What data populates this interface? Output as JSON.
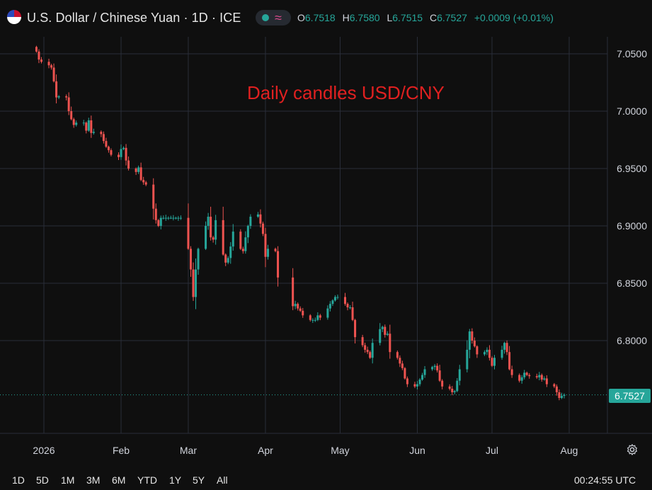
{
  "header": {
    "title": "U.S. Dollar / Chinese Yuan · 1D · ICE",
    "ohlc": [
      {
        "label": "O",
        "value": "6.7518"
      },
      {
        "label": "H",
        "value": "6.7580"
      },
      {
        "label": "L",
        "value": "6.7515"
      },
      {
        "label": "C",
        "value": "6.7527"
      }
    ],
    "change": "+0.0009 (+0.01%)",
    "status_color": "#26a69a"
  },
  "annotation": "Daily candles USD/CNY",
  "current_price": "6.7527",
  "range_buttons": [
    "1D",
    "5D",
    "1M",
    "3M",
    "6M",
    "YTD",
    "1Y",
    "5Y",
    "All"
  ],
  "clock": "00:24:55 UTC",
  "icons": {
    "settings": "gear-icon",
    "flag": "us-cn-flag-icon",
    "market_status": "market-open-dot-icon"
  },
  "chart_data": {
    "type": "candlestick",
    "title": "",
    "up_color": "#26a69a",
    "down_color": "#ef5350",
    "ylim": [
      6.725,
      7.0625
    ],
    "y_ticks": [
      "7.0500",
      "7.0000",
      "6.9500",
      "6.9000",
      "6.8500",
      "6.8000"
    ],
    "x_ticks": [
      "2026",
      "Feb",
      "Mar",
      "Apr",
      "May",
      "Jun",
      "Jul",
      "Aug"
    ],
    "x_tick_days": [
      4,
      35,
      62,
      93,
      123,
      154,
      184,
      215
    ],
    "grid": true,
    "last_close": 6.7527,
    "closes": [
      {
        "d": 1,
        "c": 7.052
      },
      {
        "d": 2,
        "c": 7.045
      },
      {
        "d": 3,
        "c": 7.043
      },
      {
        "d": 6,
        "c": 7.04
      },
      {
        "d": 7,
        "c": 7.038
      },
      {
        "d": 8,
        "c": 7.026
      },
      {
        "d": 9,
        "c": 7.012
      },
      {
        "d": 10,
        "c": 7.013
      },
      {
        "d": 13,
        "c": 7.012
      },
      {
        "d": 14,
        "c": 7.0
      },
      {
        "d": 15,
        "c": 6.993
      },
      {
        "d": 16,
        "c": 6.988
      },
      {
        "d": 17,
        "c": 6.99
      },
      {
        "d": 20,
        "c": 6.99
      },
      {
        "d": 21,
        "c": 6.983
      },
      {
        "d": 22,
        "c": 6.992
      },
      {
        "d": 23,
        "c": 6.981
      },
      {
        "d": 24,
        "c": 6.982
      },
      {
        "d": 27,
        "c": 6.98
      },
      {
        "d": 28,
        "c": 6.974
      },
      {
        "d": 29,
        "c": 6.969
      },
      {
        "d": 30,
        "c": 6.966
      },
      {
        "d": 31,
        "c": 6.962
      },
      {
        "d": 34,
        "c": 6.96
      },
      {
        "d": 35,
        "c": 6.967
      },
      {
        "d": 36,
        "c": 6.968
      },
      {
        "d": 37,
        "c": 6.957
      },
      {
        "d": 38,
        "c": 6.95
      },
      {
        "d": 41,
        "c": 6.947
      },
      {
        "d": 42,
        "c": 6.951
      },
      {
        "d": 43,
        "c": 6.94
      },
      {
        "d": 44,
        "c": 6.938
      },
      {
        "d": 45,
        "c": 6.936
      },
      {
        "d": 48,
        "c": 6.915
      },
      {
        "d": 49,
        "c": 6.905
      },
      {
        "d": 50,
        "c": 6.9
      },
      {
        "d": 51,
        "c": 6.907
      },
      {
        "d": 52,
        "c": 6.907
      },
      {
        "d": 53,
        "c": 6.907
      },
      {
        "d": 54,
        "c": 6.907
      },
      {
        "d": 55,
        "c": 6.907
      },
      {
        "d": 56,
        "c": 6.907
      },
      {
        "d": 57,
        "c": 6.907
      },
      {
        "d": 58,
        "c": 6.907
      },
      {
        "d": 59,
        "c": 6.907
      },
      {
        "d": 62,
        "c": 6.88
      },
      {
        "d": 63,
        "c": 6.862
      },
      {
        "d": 64,
        "c": 6.838
      },
      {
        "d": 65,
        "c": 6.862
      },
      {
        "d": 66,
        "c": 6.88
      },
      {
        "d": 69,
        "c": 6.9
      },
      {
        "d": 70,
        "c": 6.908
      },
      {
        "d": 71,
        "c": 6.89
      },
      {
        "d": 72,
        "c": 6.888
      },
      {
        "d": 73,
        "c": 6.905
      },
      {
        "d": 76,
        "c": 6.875
      },
      {
        "d": 77,
        "c": 6.868
      },
      {
        "d": 78,
        "c": 6.872
      },
      {
        "d": 79,
        "c": 6.882
      },
      {
        "d": 80,
        "c": 6.895
      },
      {
        "d": 83,
        "c": 6.88
      },
      {
        "d": 84,
        "c": 6.878
      },
      {
        "d": 85,
        "c": 6.89
      },
      {
        "d": 86,
        "c": 6.9
      },
      {
        "d": 87,
        "c": 6.908
      },
      {
        "d": 90,
        "c": 6.91
      },
      {
        "d": 91,
        "c": 6.902
      },
      {
        "d": 92,
        "c": 6.893
      },
      {
        "d": 93,
        "c": 6.873
      },
      {
        "d": 94,
        "c": 6.88
      },
      {
        "d": 97,
        "c": 6.878
      },
      {
        "d": 98,
        "c": 6.855
      },
      {
        "d": 104,
        "c": 6.83
      },
      {
        "d": 105,
        "c": 6.832
      },
      {
        "d": 106,
        "c": 6.828
      },
      {
        "d": 107,
        "c": 6.826
      },
      {
        "d": 108,
        "c": 6.822
      },
      {
        "d": 111,
        "c": 6.818
      },
      {
        "d": 112,
        "c": 6.818
      },
      {
        "d": 113,
        "c": 6.818
      },
      {
        "d": 114,
        "c": 6.822
      },
      {
        "d": 115,
        "c": 6.82
      },
      {
        "d": 118,
        "c": 6.828
      },
      {
        "d": 119,
        "c": 6.832
      },
      {
        "d": 120,
        "c": 6.835
      },
      {
        "d": 121,
        "c": 6.838
      },
      {
        "d": 122,
        "c": 6.838
      },
      {
        "d": 125,
        "c": 6.832
      },
      {
        "d": 126,
        "c": 6.829
      },
      {
        "d": 127,
        "c": 6.829
      },
      {
        "d": 128,
        "c": 6.818
      },
      {
        "d": 129,
        "c": 6.803
      },
      {
        "d": 132,
        "c": 6.796
      },
      {
        "d": 133,
        "c": 6.792
      },
      {
        "d": 134,
        "c": 6.79
      },
      {
        "d": 135,
        "c": 6.785
      },
      {
        "d": 136,
        "c": 6.798
      },
      {
        "d": 139,
        "c": 6.81
      },
      {
        "d": 140,
        "c": 6.812
      },
      {
        "d": 141,
        "c": 6.805
      },
      {
        "d": 142,
        "c": 6.806
      },
      {
        "d": 143,
        "c": 6.79
      },
      {
        "d": 146,
        "c": 6.785
      },
      {
        "d": 147,
        "c": 6.78
      },
      {
        "d": 148,
        "c": 6.776
      },
      {
        "d": 149,
        "c": 6.767
      },
      {
        "d": 150,
        "c": 6.762
      },
      {
        "d": 153,
        "c": 6.76
      },
      {
        "d": 154,
        "c": 6.762
      },
      {
        "d": 155,
        "c": 6.766
      },
      {
        "d": 156,
        "c": 6.77
      },
      {
        "d": 157,
        "c": 6.775
      },
      {
        "d": 160,
        "c": 6.777
      },
      {
        "d": 161,
        "c": 6.778
      },
      {
        "d": 162,
        "c": 6.774
      },
      {
        "d": 163,
        "c": 6.765
      },
      {
        "d": 164,
        "c": 6.76
      },
      {
        "d": 167,
        "c": 6.758
      },
      {
        "d": 168,
        "c": 6.755
      },
      {
        "d": 169,
        "c": 6.756
      },
      {
        "d": 170,
        "c": 6.765
      },
      {
        "d": 171,
        "c": 6.775
      },
      {
        "d": 174,
        "c": 6.792
      },
      {
        "d": 175,
        "c": 6.808
      },
      {
        "d": 176,
        "c": 6.8
      },
      {
        "d": 177,
        "c": 6.795
      },
      {
        "d": 178,
        "c": 6.788
      },
      {
        "d": 181,
        "c": 6.79
      },
      {
        "d": 182,
        "c": 6.792
      },
      {
        "d": 183,
        "c": 6.785
      },
      {
        "d": 184,
        "c": 6.778
      },
      {
        "d": 185,
        "c": 6.785
      },
      {
        "d": 188,
        "c": 6.792
      },
      {
        "d": 189,
        "c": 6.798
      },
      {
        "d": 190,
        "c": 6.79
      },
      {
        "d": 191,
        "c": 6.775
      },
      {
        "d": 192,
        "c": 6.77
      },
      {
        "d": 195,
        "c": 6.765
      },
      {
        "d": 196,
        "c": 6.768
      },
      {
        "d": 197,
        "c": 6.772
      },
      {
        "d": 198,
        "c": 6.77
      },
      {
        "d": 199,
        "c": 6.769
      },
      {
        "d": 202,
        "c": 6.768
      },
      {
        "d": 203,
        "c": 6.77
      },
      {
        "d": 204,
        "c": 6.766
      },
      {
        "d": 205,
        "c": 6.767
      },
      {
        "d": 206,
        "c": 6.762
      },
      {
        "d": 209,
        "c": 6.76
      },
      {
        "d": 210,
        "c": 6.755
      },
      {
        "d": 211,
        "c": 6.75
      },
      {
        "d": 212,
        "c": 6.7518
      },
      {
        "d": 213,
        "c": 6.7527
      }
    ]
  }
}
